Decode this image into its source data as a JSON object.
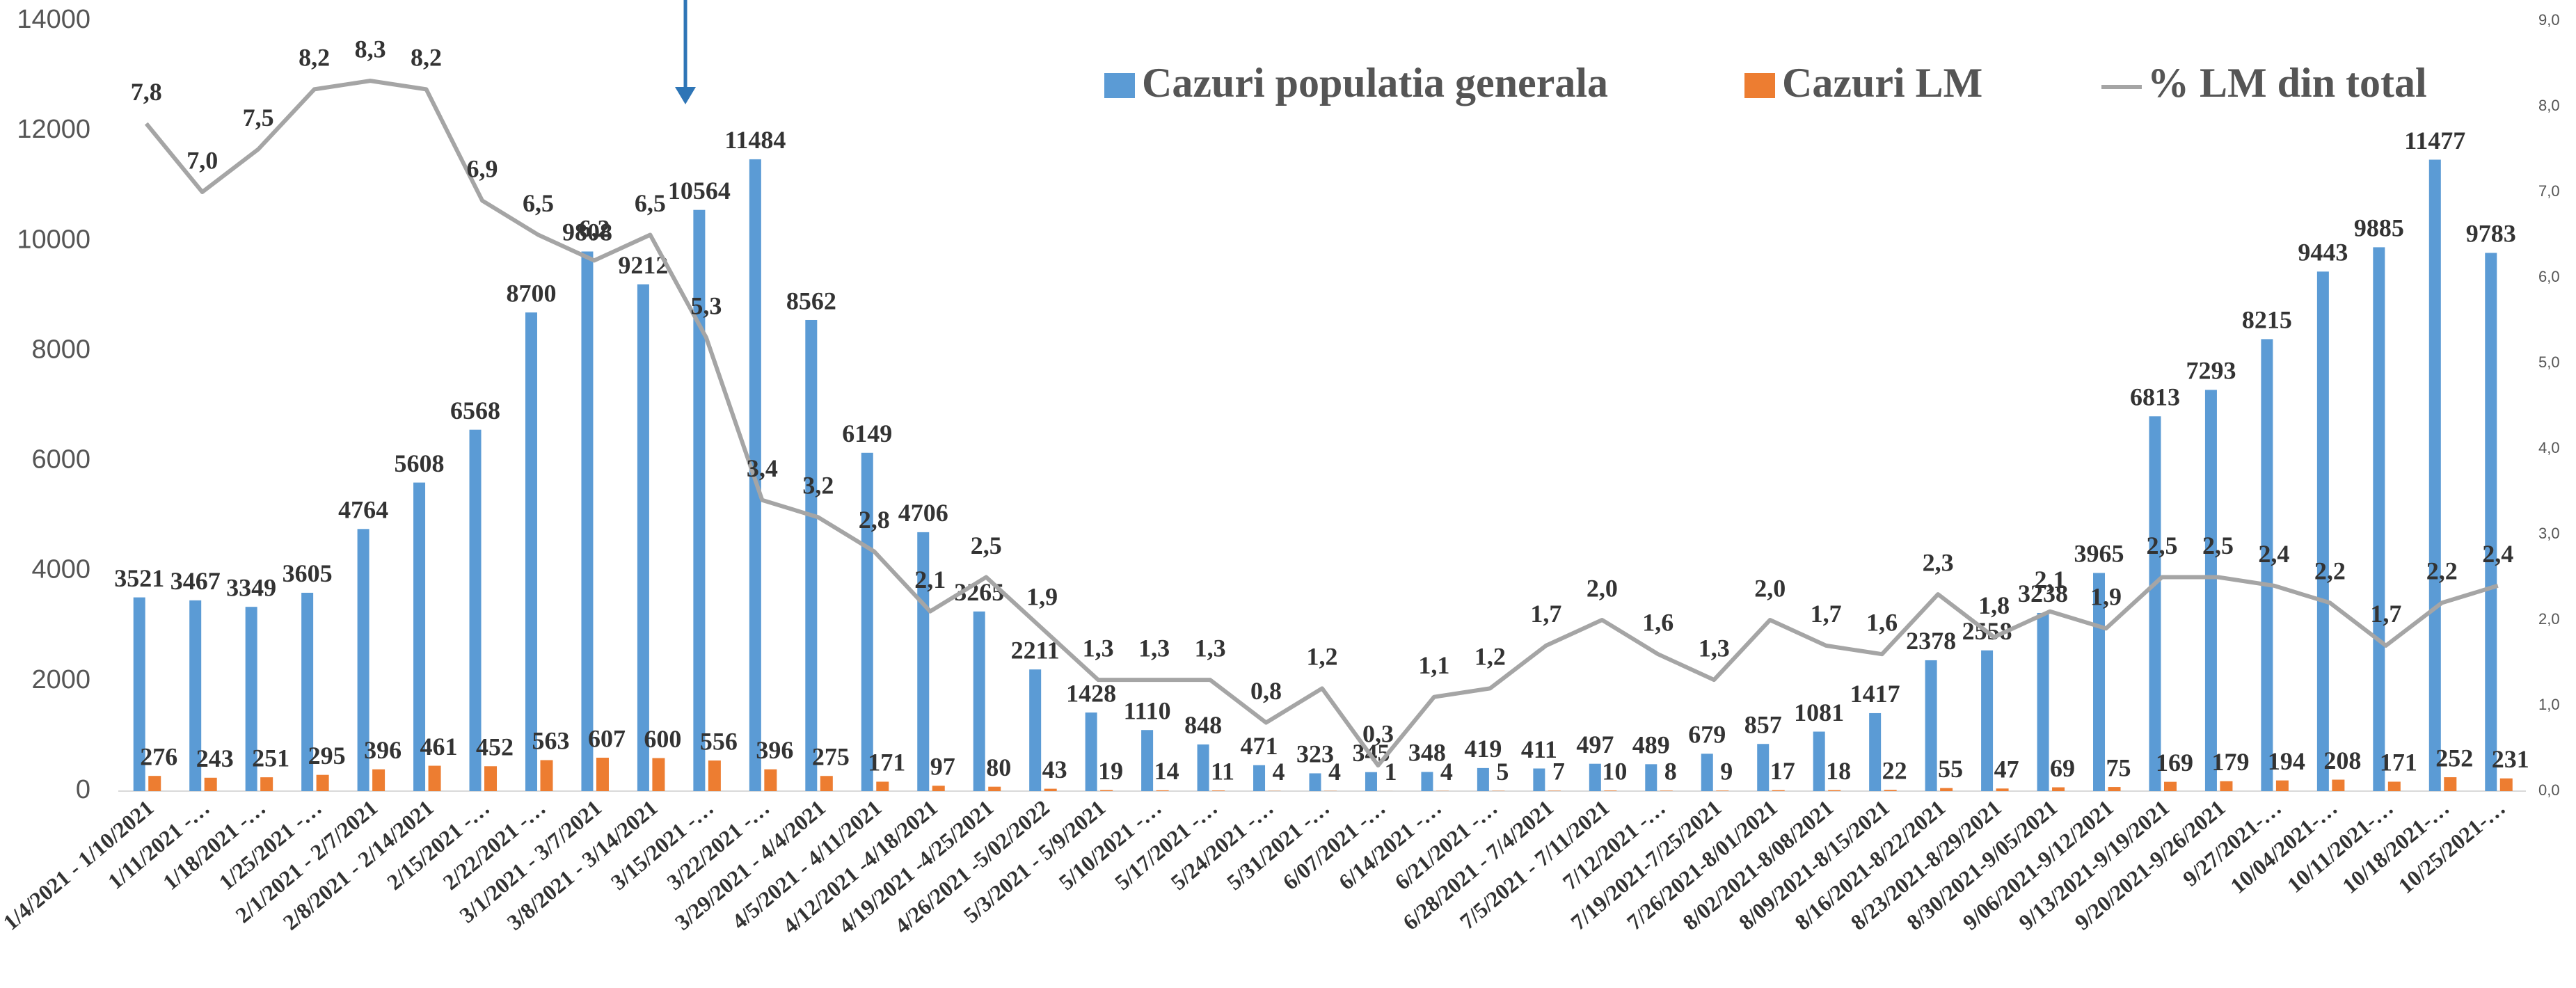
{
  "chart_data": {
    "type": "bar",
    "categories": [
      "1/4/2021 - 1/10/2021",
      "1/11/2021 -…",
      "1/18/2021 -…",
      "1/25/2021 -…",
      "2/1/2021 - 2/7/2021",
      "2/8/2021 - 2/14/2021",
      "2/15/2021 -…",
      "2/22/2021 -…",
      "3/1/2021 - 3/7/2021",
      "3/8/2021 - 3/14/2021",
      "3/15/2021 -…",
      "3/22/2021 -…",
      "3/29/2021 - 4/4/2021",
      "4/5/2021 - 4/11/2021",
      "4/12/2021 -4/18/2021",
      "4/19/2021 -4/25/2021",
      "4/26/2021 -5/02/2022",
      "5/3/2021 - 5/9/2021",
      "5/10/2021 -…",
      "5/17/2021 -…",
      "5/24/2021 -…",
      "5/31/2021 -…",
      "6/07/2021 -…",
      "6/14/2021 -…",
      "6/21/2021 -…",
      "6/28/2021 - 7/4/2021",
      "7/5/2021 - 7/11/2021",
      "7/12/2021 -…",
      "7/19/2021-7/25/2021",
      "7/26/2021-8/01/2021",
      "8/02/2021-8/08/2021",
      "8/09/2021-8/15/2021",
      "8/16/2021-8/22/2021",
      "8/23/2021-8/29/2021",
      "8/30/2021-9/05/2021",
      "9/06/2021-9/12/2021",
      "9/13/2021-9/19/2021",
      "9/20/2021-9/26/2021",
      "9/27/2021-…",
      "10/04/2021-…",
      "10/11/2021-…",
      "10/18/2021-…",
      "10/25/2021-…"
    ],
    "series": [
      {
        "name": "Cazuri populatia generala",
        "color": "#5b9bd5",
        "type": "bar",
        "values": [
          3521,
          3467,
          3349,
          3605,
          4764,
          5608,
          6568,
          8700,
          9808,
          9212,
          10564,
          11484,
          8562,
          6149,
          4706,
          3265,
          2211,
          1428,
          1110,
          848,
          471,
          323,
          345,
          348,
          419,
          411,
          497,
          489,
          679,
          857,
          1081,
          1417,
          2378,
          2558,
          3238,
          3965,
          6813,
          7293,
          8215,
          9443,
          9885,
          11477,
          9783
        ]
      },
      {
        "name": "Cazuri LM",
        "color": "#ed7d31",
        "type": "bar",
        "values": [
          276,
          243,
          251,
          295,
          396,
          461,
          452,
          563,
          607,
          600,
          556,
          396,
          275,
          171,
          97,
          80,
          43,
          19,
          14,
          11,
          4,
          4,
          1,
          4,
          5,
          7,
          10,
          8,
          9,
          17,
          18,
          22,
          55,
          47,
          69,
          75,
          169,
          179,
          194,
          208,
          171,
          252,
          231
        ]
      },
      {
        "name": "% LM din total",
        "color": "#a5a5a5",
        "type": "line",
        "axis": "y2",
        "values": [
          7.8,
          7.0,
          7.5,
          8.2,
          8.3,
          8.2,
          6.9,
          6.5,
          6.2,
          6.5,
          5.3,
          3.4,
          3.2,
          2.8,
          2.1,
          2.5,
          1.9,
          1.3,
          1.3,
          1.3,
          0.8,
          1.2,
          0.3,
          1.1,
          1.2,
          1.7,
          2.0,
          1.6,
          1.3,
          2.0,
          1.7,
          1.6,
          2.3,
          1.8,
          2.1,
          1.9,
          2.5,
          2.5,
          2.4,
          2.2,
          1.7,
          2.2,
          2.4
        ],
        "value_labels": [
          "7,8",
          "7,0",
          "7,5",
          "8,2",
          "8,3",
          "8,2",
          "6,9",
          "6,5",
          "6,2",
          "6,5",
          "5,3",
          "3,4",
          "3,2",
          "2,8",
          "2,1",
          "2,5",
          "1,9",
          "1,3",
          "1,3",
          "1,3",
          "0,8",
          "1,2",
          "0,3",
          "1,1",
          "1,2",
          "1,7",
          "2,0",
          "1,6",
          "1,3",
          "2,0",
          "1,7",
          "1,6",
          "2,3",
          "1,8",
          "2,1",
          "1,9",
          "2,5",
          "2,5",
          "2,4",
          "2,2",
          "1,7",
          "2,2",
          "2,4"
        ]
      }
    ],
    "ylim": [
      0,
      14000
    ],
    "yticks": [
      0,
      2000,
      4000,
      6000,
      8000,
      10000,
      12000,
      14000
    ],
    "y2lim": [
      0,
      9
    ],
    "y2ticks": [
      {
        "value": 0,
        "label": "0,0"
      },
      {
        "value": 1,
        "label": "1,0"
      },
      {
        "value": 2,
        "label": "2,0"
      },
      {
        "value": 3,
        "label": "3,0"
      },
      {
        "value": 4,
        "label": "4,0"
      },
      {
        "value": 5,
        "label": "5,0"
      },
      {
        "value": 6,
        "label": "6,0"
      },
      {
        "value": 7,
        "label": "7,0"
      },
      {
        "value": 8,
        "label": "8,0"
      },
      {
        "value": 9,
        "label": "9,0"
      }
    ],
    "legend": "top"
  }
}
